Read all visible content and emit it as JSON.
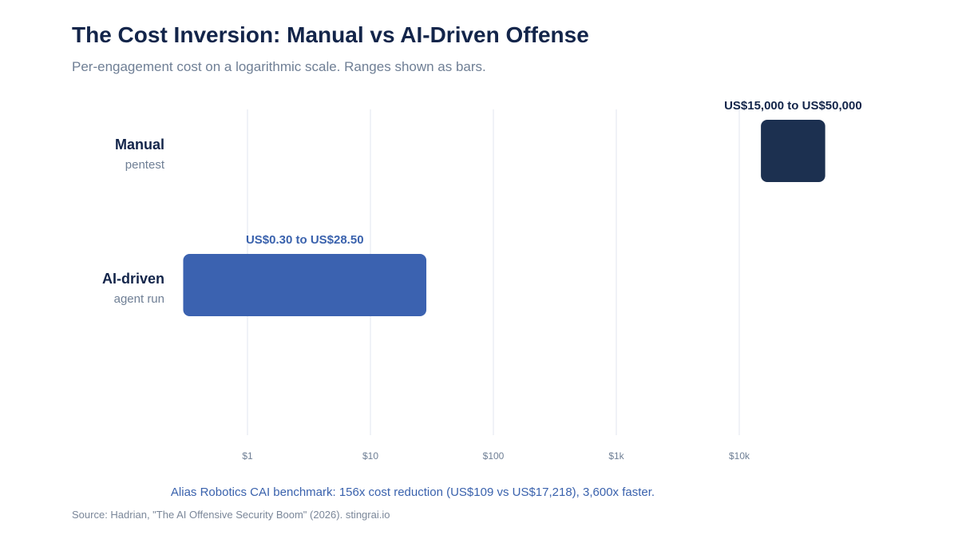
{
  "header": {
    "title": "The Cost Inversion: Manual vs AI-Driven Offense",
    "subtitle": "Per-engagement cost on a logarithmic scale. Ranges shown as bars."
  },
  "chart_data": {
    "type": "bar",
    "orientation": "horizontal",
    "x_scale": "log",
    "xlim": [
      0.3,
      50000
    ],
    "grid": true,
    "title": "The Cost Inversion: Manual vs AI-Driven Offense",
    "subtitle": "Per-engagement cost on a logarithmic scale. Ranges shown as bars.",
    "xlabel": "",
    "ylabel": "",
    "x_ticks": [
      {
        "value": 1,
        "label": "$1"
      },
      {
        "value": 10,
        "label": "$10"
      },
      {
        "value": 100,
        "label": "$100"
      },
      {
        "value": 1000,
        "label": "$1k"
      },
      {
        "value": 10000,
        "label": "$10k"
      }
    ],
    "categories": [
      {
        "name": "Manual",
        "sub": "pentest",
        "low": 15000,
        "high": 50000,
        "label": "US$15,000 to US$50,000",
        "color": "#1c3050",
        "label_color": "#13254a"
      },
      {
        "name": "AI-driven",
        "sub": "agent run",
        "low": 0.3,
        "high": 28.5,
        "label": "US$0.30 to US$28.50",
        "color": "#3b62b0",
        "label_color": "#3a62ad"
      }
    ]
  },
  "footer": {
    "note": "Alias Robotics CAI benchmark: 156x cost reduction (US$109 vs US$17,218), 3,600x faster.",
    "source": "Source: Hadrian, \"The AI Offensive Security Boom\" (2026). stingrai.io"
  }
}
